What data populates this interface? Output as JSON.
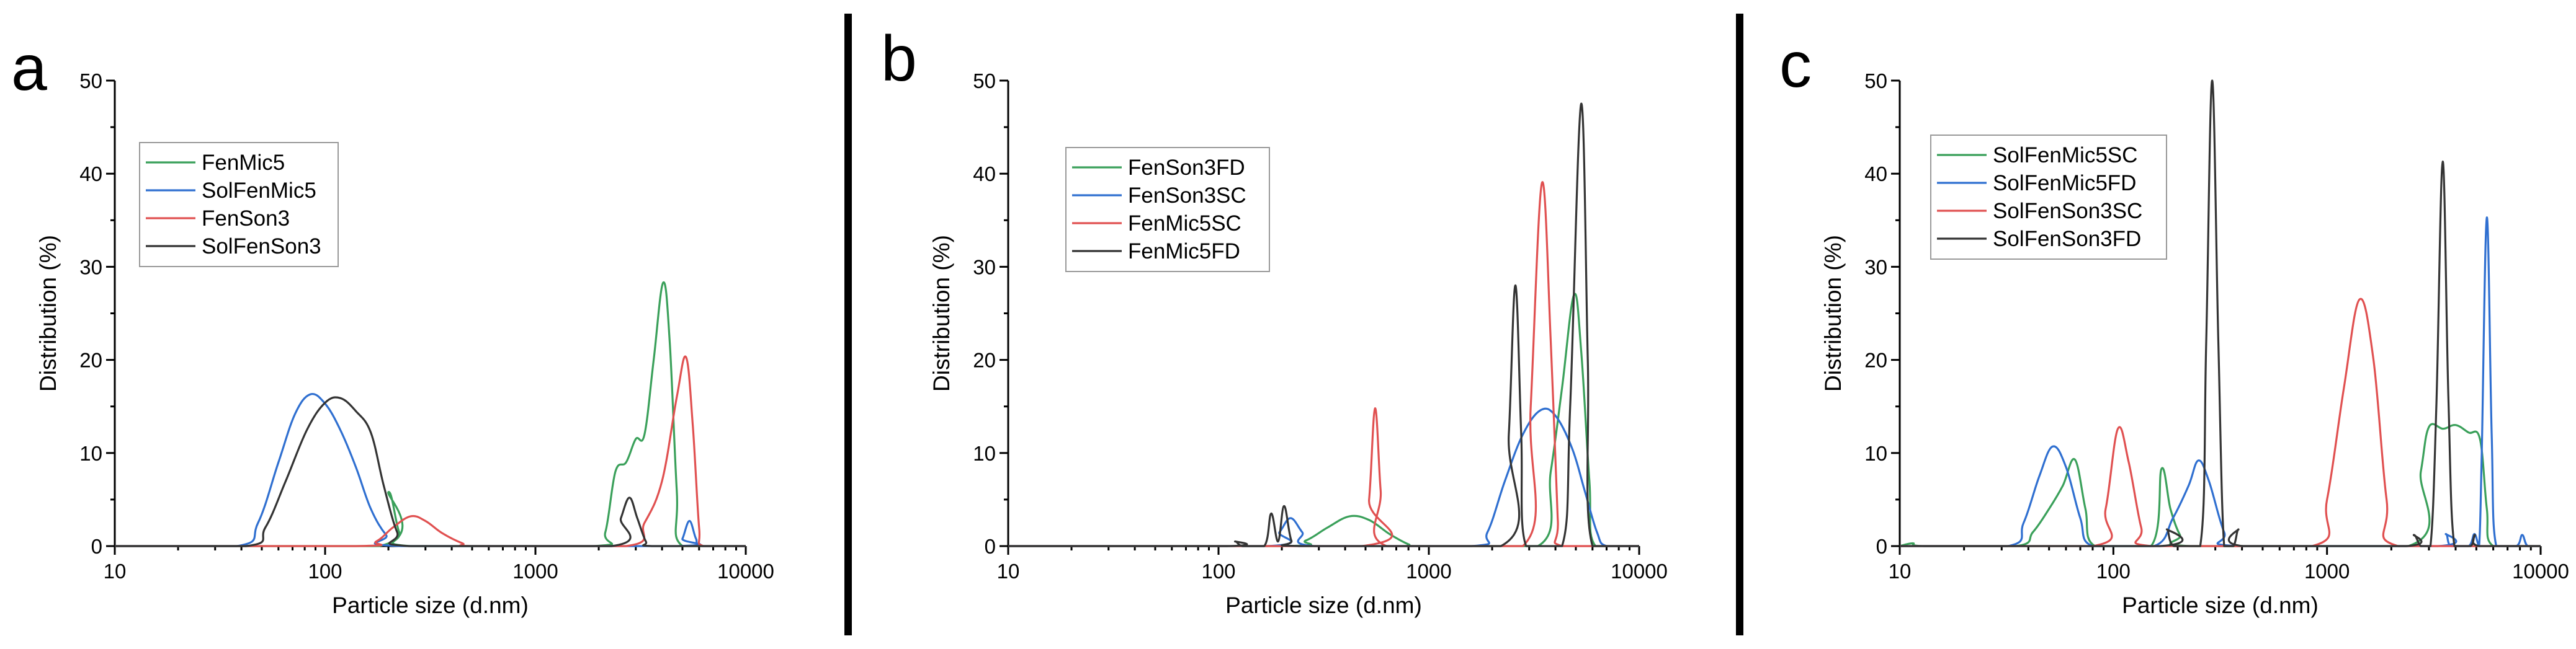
{
  "chart_data": [
    {
      "type": "line",
      "panel_label": "a",
      "xlabel": "Particle size (d.nm)",
      "ylabel": "Distribution (%)",
      "x_scale": "log",
      "xlim": [
        10,
        10000
      ],
      "ylim": [
        0,
        50
      ],
      "x_ticks": [
        "10",
        "100",
        "1000",
        "10000"
      ],
      "y_ticks": [
        "0",
        "10",
        "20",
        "30",
        "40",
        "50"
      ],
      "grid": false,
      "legend_position": "top-left",
      "series": [
        {
          "name": "FenMic5",
          "color": "#3aa05a",
          "points": [
            [
              10,
              0
            ],
            [
              180,
              0
            ],
            [
              200,
              5.8
            ],
            [
              225,
              1.5
            ],
            [
              255,
              0
            ],
            [
              1900,
              0
            ],
            [
              2150,
              1.5
            ],
            [
              2400,
              8
            ],
            [
              2700,
              9
            ],
            [
              3000,
              11.5
            ],
            [
              3300,
              12
            ],
            [
              3650,
              20
            ],
            [
              4050,
              28.3
            ],
            [
              4350,
              22
            ],
            [
              4700,
              6
            ],
            [
              5000,
              0
            ],
            [
              10000,
              0
            ]
          ]
        },
        {
          "name": "SolFenMic5",
          "color": "#2f6fd0",
          "points": [
            [
              10,
              0
            ],
            [
              38,
              0
            ],
            [
              48,
              2.5
            ],
            [
              60,
              9
            ],
            [
              72,
              14.2
            ],
            [
              85,
              16.3
            ],
            [
              100,
              15.3
            ],
            [
              118,
              12.5
            ],
            [
              140,
              8.5
            ],
            [
              165,
              4
            ],
            [
              195,
              1.2
            ],
            [
              230,
              0
            ],
            [
              4700,
              0
            ],
            [
              5000,
              0.8
            ],
            [
              5400,
              2.7
            ],
            [
              5800,
              0.8
            ],
            [
              6200,
              0
            ],
            [
              10000,
              0
            ]
          ]
        },
        {
          "name": "FenSon3",
          "color": "#e05050",
          "points": [
            [
              10,
              0
            ],
            [
              140,
              0
            ],
            [
              175,
              0.5
            ],
            [
              210,
              2
            ],
            [
              255,
              3.2
            ],
            [
              300,
              2.7
            ],
            [
              360,
              1.4
            ],
            [
              450,
              0.3
            ],
            [
              520,
              0
            ],
            [
              2700,
              0
            ],
            [
              3300,
              2.5
            ],
            [
              4000,
              7
            ],
            [
              4700,
              16
            ],
            [
              5200,
              20.3
            ],
            [
              5600,
              13
            ],
            [
              6000,
              2
            ],
            [
              6300,
              0
            ],
            [
              10000,
              0
            ]
          ]
        },
        {
          "name": "SolFenSon3",
          "color": "#333333",
          "points": [
            [
              10,
              0
            ],
            [
              42,
              0
            ],
            [
              52,
              2
            ],
            [
              65,
              7
            ],
            [
              82,
              12.5
            ],
            [
              100,
              15.4
            ],
            [
              118,
              15.9
            ],
            [
              140,
              14.5
            ],
            [
              165,
              12.2
            ],
            [
              190,
              6.5
            ],
            [
              220,
              1.5
            ],
            [
              250,
              0
            ],
            [
              2300,
              0
            ],
            [
              2550,
              3
            ],
            [
              2800,
              5.2
            ],
            [
              3050,
              3
            ],
            [
              3350,
              0.5
            ],
            [
              3600,
              0
            ],
            [
              10000,
              0
            ]
          ]
        }
      ]
    },
    {
      "type": "line",
      "panel_label": "b",
      "xlabel": "Particle size (d.nm)",
      "ylabel": "Distribution (%)",
      "x_scale": "log",
      "xlim": [
        10,
        10000
      ],
      "ylim": [
        0,
        50
      ],
      "x_ticks": [
        "10",
        "100",
        "1000",
        "10000"
      ],
      "y_ticks": [
        "0",
        "10",
        "20",
        "30",
        "40",
        "50"
      ],
      "grid": false,
      "legend_position": "top-left",
      "series": [
        {
          "name": "FenSon3FD",
          "color": "#3aa05a",
          "points": [
            [
              10,
              0
            ],
            [
              200,
              0
            ],
            [
              260,
              0.6
            ],
            [
              330,
              2
            ],
            [
              420,
              3.2
            ],
            [
              520,
              2.8
            ],
            [
              650,
              1.3
            ],
            [
              800,
              0.2
            ],
            [
              900,
              0
            ],
            [
              3300,
              0
            ],
            [
              3800,
              8
            ],
            [
              4300,
              17
            ],
            [
              4900,
              27
            ],
            [
              5300,
              21
            ],
            [
              5800,
              7
            ],
            [
              6200,
              0
            ],
            [
              10000,
              0
            ]
          ]
        },
        {
          "name": "FenSon3SC",
          "color": "#2f6fd0",
          "points": [
            [
              10,
              0
            ],
            [
              170,
              0
            ],
            [
              195,
              1.5
            ],
            [
              220,
              3
            ],
            [
              250,
              1.5
            ],
            [
              285,
              0
            ],
            [
              1600,
              0
            ],
            [
              1900,
              1.5
            ],
            [
              2300,
              7
            ],
            [
              2800,
              12
            ],
            [
              3400,
              14.6
            ],
            [
              4000,
              14
            ],
            [
              4800,
              10.5
            ],
            [
              5500,
              6
            ],
            [
              6300,
              1.5
            ],
            [
              7000,
              0
            ],
            [
              10000,
              0
            ]
          ]
        },
        {
          "name": "FenMic5SC",
          "color": "#e05050",
          "points": [
            [
              10,
              0
            ],
            [
              480,
              0
            ],
            [
              520,
              5
            ],
            [
              555,
              14.8
            ],
            [
              590,
              6
            ],
            [
              630,
              0
            ],
            [
              2800,
              0
            ],
            [
              3050,
              15
            ],
            [
              3450,
              39
            ],
            [
              3800,
              22
            ],
            [
              4100,
              3
            ],
            [
              4300,
              0
            ],
            [
              10000,
              0
            ]
          ]
        },
        {
          "name": "FenMic5FD",
          "color": "#333333",
          "points": [
            [
              10,
              0
            ],
            [
              110,
              0
            ],
            [
              120,
              0.5
            ],
            [
              130,
              0
            ],
            [
              165,
              0
            ],
            [
              178,
              3.5
            ],
            [
              192,
              0.5
            ],
            [
              205,
              4.3
            ],
            [
              222,
              0.6
            ],
            [
              245,
              0
            ],
            [
              2200,
              0
            ],
            [
              2400,
              12
            ],
            [
              2580,
              28
            ],
            [
              2750,
              12
            ],
            [
              2900,
              0
            ],
            [
              4300,
              0
            ],
            [
              4700,
              15
            ],
            [
              5300,
              47.5
            ],
            [
              5700,
              20
            ],
            [
              6000,
              0
            ],
            [
              10000,
              0
            ]
          ]
        }
      ]
    },
    {
      "type": "line",
      "panel_label": "c",
      "xlabel": "Particle size (d.nm)",
      "ylabel": "Distribution (%)",
      "x_scale": "log",
      "xlim": [
        10,
        10000
      ],
      "ylim": [
        0,
        50
      ],
      "x_ticks": [
        "10",
        "100",
        "1000",
        "10000"
      ],
      "y_ticks": [
        "0",
        "10",
        "20",
        "30",
        "40",
        "50"
      ],
      "grid": false,
      "legend_position": "top-left",
      "series": [
        {
          "name": "SolFenMic5SC",
          "color": "#3aa05a",
          "points": [
            [
              10,
              0
            ],
            [
              11.5,
              0.3
            ],
            [
              13,
              0
            ],
            [
              35,
              0
            ],
            [
              42,
              1.5
            ],
            [
              50,
              4
            ],
            [
              58,
              6.5
            ],
            [
              66,
              9.3
            ],
            [
              74,
              4
            ],
            [
              82,
              0
            ],
            [
              150,
              0
            ],
            [
              168,
              8.3
            ],
            [
              185,
              4
            ],
            [
              205,
              1.2
            ],
            [
              230,
              0
            ],
            [
              2400,
              0
            ],
            [
              2750,
              8
            ],
            [
              3000,
              12.8
            ],
            [
              3500,
              12.6
            ],
            [
              4000,
              13
            ],
            [
              4600,
              12.2
            ],
            [
              5200,
              11.5
            ],
            [
              5600,
              4
            ],
            [
              6000,
              0
            ],
            [
              10000,
              0
            ]
          ]
        },
        {
          "name": "SolFenMic5FD",
          "color": "#2f6fd0",
          "points": [
            [
              10,
              0
            ],
            [
              32,
              0
            ],
            [
              38,
              2.5
            ],
            [
              45,
              7.5
            ],
            [
              52,
              10.7
            ],
            [
              60,
              8.5
            ],
            [
              70,
              3
            ],
            [
              80,
              0
            ],
            [
              155,
              0
            ],
            [
              190,
              3
            ],
            [
              225,
              6.5
            ],
            [
              250,
              9.2
            ],
            [
              280,
              7
            ],
            [
              330,
              1.5
            ],
            [
              380,
              0
            ],
            [
              3300,
              0
            ],
            [
              3600,
              1.3
            ],
            [
              3800,
              0
            ],
            [
              4600,
              0
            ],
            [
              4900,
              1.3
            ],
            [
              5150,
              0
            ],
            [
              5300,
              10
            ],
            [
              5600,
              35.3
            ],
            [
              5900,
              12
            ],
            [
              6200,
              0
            ],
            [
              7700,
              0
            ],
            [
              8200,
              1.2
            ],
            [
              8700,
              0
            ],
            [
              10000,
              0
            ]
          ]
        },
        {
          "name": "SolFenSon3SC",
          "color": "#e05050",
          "points": [
            [
              10,
              0
            ],
            [
              80,
              0
            ],
            [
              92,
              4
            ],
            [
              105,
              12.6
            ],
            [
              118,
              9
            ],
            [
              135,
              2
            ],
            [
              150,
              0
            ],
            [
              850,
              0
            ],
            [
              1000,
              5
            ],
            [
              1200,
              17
            ],
            [
              1420,
              26.5
            ],
            [
              1650,
              20
            ],
            [
              1900,
              5
            ],
            [
              2150,
              0
            ],
            [
              10000,
              0
            ]
          ]
        },
        {
          "name": "SolFenSon3FD",
          "color": "#333333",
          "points": [
            [
              10,
              0
            ],
            [
              165,
              0
            ],
            [
              178,
              1.8
            ],
            [
              192,
              0
            ],
            [
              255,
              0
            ],
            [
              272,
              22
            ],
            [
              290,
              50
            ],
            [
              310,
              22
            ],
            [
              330,
              0
            ],
            [
              365,
              0
            ],
            [
              385,
              1.8
            ],
            [
              405,
              0
            ],
            [
              2350,
              0
            ],
            [
              2550,
              1.2
            ],
            [
              2750,
              0
            ],
            [
              3050,
              0
            ],
            [
              3250,
              15
            ],
            [
              3480,
              41.3
            ],
            [
              3700,
              16
            ],
            [
              3950,
              0
            ],
            [
              4700,
              0
            ],
            [
              4920,
              1.2
            ],
            [
              5150,
              0
            ],
            [
              10000,
              0
            ]
          ]
        }
      ]
    }
  ]
}
